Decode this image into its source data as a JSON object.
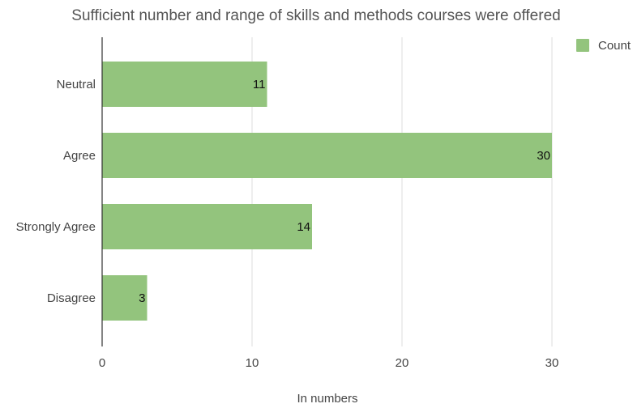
{
  "chart_data": {
    "type": "bar",
    "orientation": "horizontal",
    "title": "Sufficient number and range of skills and methods courses were offered",
    "xlabel": "In numbers",
    "ylabel": "",
    "categories": [
      "Neutral",
      "Agree",
      "Strongly Agree",
      "Disagree"
    ],
    "series": [
      {
        "name": "Count",
        "values": [
          11,
          30,
          14,
          3
        ],
        "color": "#93c47d"
      }
    ],
    "xlim": [
      0,
      35
    ],
    "xticks": [
      0,
      10,
      20,
      30
    ],
    "grid": true,
    "legend": "top-right",
    "data_labels": true
  }
}
